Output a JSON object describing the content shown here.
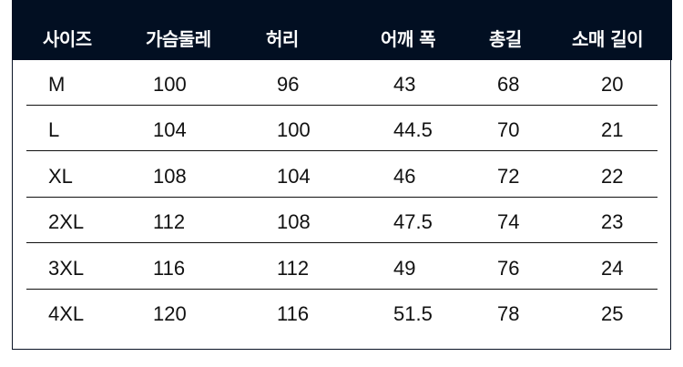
{
  "table": {
    "headers": [
      "사이즈",
      "가슴둘레",
      "허리",
      "어깨 폭",
      "총길",
      "소매 길이"
    ],
    "rows": [
      [
        "M",
        "100",
        "96",
        "43",
        "68",
        "20"
      ],
      [
        "L",
        "104",
        "100",
        "44.5",
        "70",
        "21"
      ],
      [
        "XL",
        "108",
        "104",
        "46",
        "72",
        "22"
      ],
      [
        "2XL",
        "112",
        "108",
        "47.5",
        "74",
        "23"
      ],
      [
        "3XL",
        "116",
        "112",
        "49",
        "76",
        "24"
      ],
      [
        "4XL",
        "120",
        "116",
        "51.5",
        "78",
        "25"
      ]
    ]
  },
  "colors": {
    "header_bg": "#020f22",
    "header_text": "#ffffff",
    "text": "#111111"
  }
}
